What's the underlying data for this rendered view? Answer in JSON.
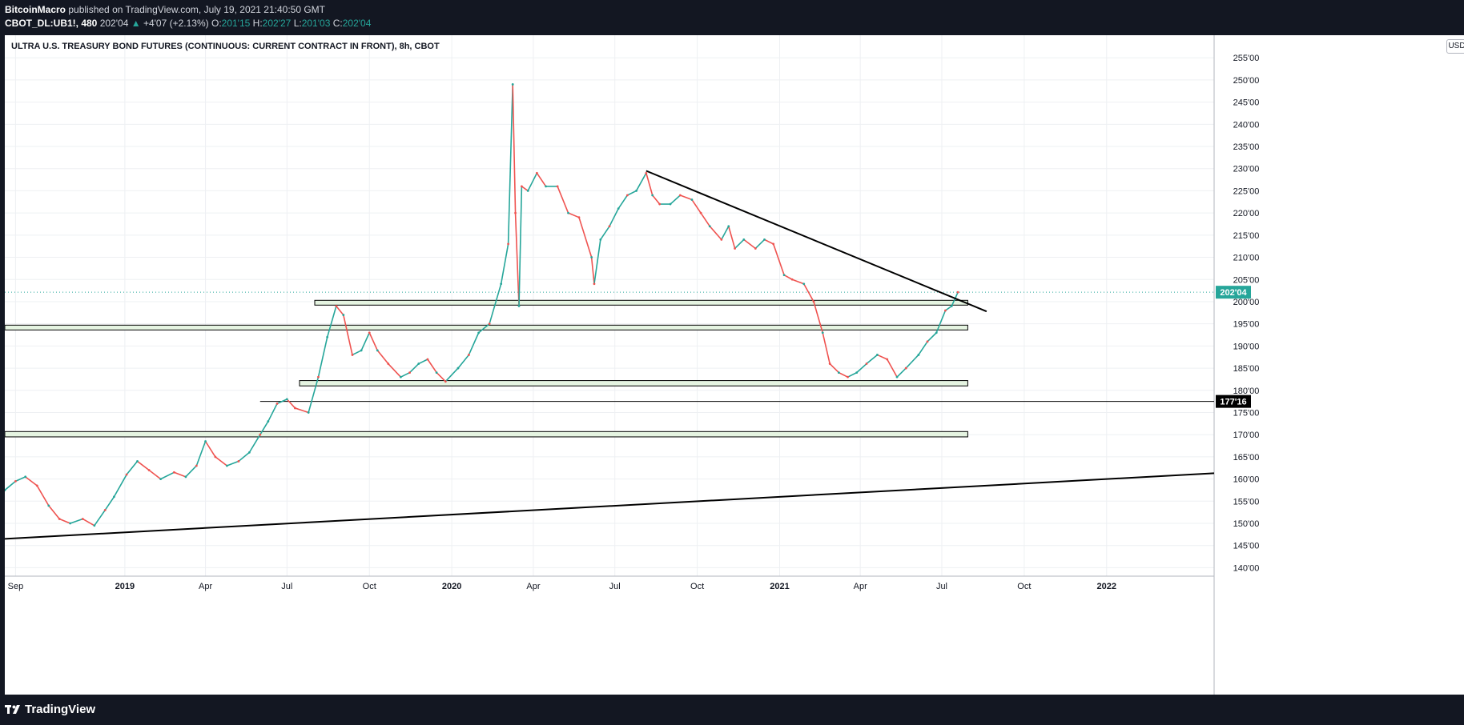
{
  "header": {
    "author": "BitcoinMacro",
    "published_text": "published on TradingView.com, July 19, 2021 21:40:50 GMT",
    "symbol": "CBOT_DL:UB1!, 480",
    "last": "202'04",
    "change_arrow": "▲",
    "change": "+4'07 (+2.13%)",
    "open_label": "O:",
    "open": "201'15",
    "high_label": "H:",
    "high": "202'27",
    "low_label": "L:",
    "low": "201'03",
    "close_label": "C:",
    "close": "202'04"
  },
  "footer": {
    "logo_text": "TradingView"
  },
  "chart_data": {
    "type": "line",
    "title": "ULTRA U.S. TREASURY BOND FUTURES (CONTINUOUS: CURRENT CONTRACT IN FRONT), 8h, CBOT",
    "currency": "USD",
    "x_range": [
      "2018-08-20",
      "2022-05-01"
    ],
    "ylim": [
      138,
      260
    ],
    "y_ticks": [
      "140'00",
      "145'00",
      "150'00",
      "155'00",
      "160'00",
      "165'00",
      "170'00",
      "175'00",
      "180'00",
      "185'00",
      "190'00",
      "195'00",
      "200'00",
      "205'00",
      "210'00",
      "215'00",
      "220'00",
      "225'00",
      "230'00",
      "235'00",
      "240'00",
      "245'00",
      "250'00",
      "255'00"
    ],
    "y_tick_values": [
      140,
      145,
      150,
      155,
      160,
      165,
      170,
      175,
      180,
      185,
      190,
      195,
      200,
      205,
      210,
      215,
      220,
      225,
      230,
      235,
      240,
      245,
      250,
      255
    ],
    "x_ticks": [
      {
        "label": "Sep",
        "date": "2018-09-01",
        "bold": false
      },
      {
        "label": "2019",
        "date": "2019-01-01",
        "bold": true
      },
      {
        "label": "Apr",
        "date": "2019-04-01",
        "bold": false
      },
      {
        "label": "Jul",
        "date": "2019-07-01",
        "bold": false
      },
      {
        "label": "Oct",
        "date": "2019-10-01",
        "bold": false
      },
      {
        "label": "2020",
        "date": "2020-01-01",
        "bold": true
      },
      {
        "label": "Apr",
        "date": "2020-04-01",
        "bold": false
      },
      {
        "label": "Jul",
        "date": "2020-07-01",
        "bold": false
      },
      {
        "label": "Oct",
        "date": "2020-10-01",
        "bold": false
      },
      {
        "label": "2021",
        "date": "2021-01-01",
        "bold": true
      },
      {
        "label": "Apr",
        "date": "2021-04-01",
        "bold": false
      },
      {
        "label": "Jul",
        "date": "2021-07-01",
        "bold": false
      },
      {
        "label": "Oct",
        "date": "2021-10-01",
        "bold": false
      },
      {
        "label": "2022",
        "date": "2022-01-01",
        "bold": true
      }
    ],
    "series": [
      {
        "color": "#26a69a",
        "down_color": "#ef5350",
        "points": [
          [
            "2018-08-20",
            157.5
          ],
          [
            "2018-09-01",
            159.5
          ],
          [
            "2018-09-12",
            160.5
          ],
          [
            "2018-09-25",
            158.5
          ],
          [
            "2018-10-08",
            154
          ],
          [
            "2018-10-20",
            151
          ],
          [
            "2018-11-01",
            150
          ],
          [
            "2018-11-15",
            151
          ],
          [
            "2018-11-28",
            149.5
          ],
          [
            "2018-12-10",
            153
          ],
          [
            "2018-12-20",
            156
          ],
          [
            "2019-01-03",
            161
          ],
          [
            "2019-01-15",
            164
          ],
          [
            "2019-01-28",
            162
          ],
          [
            "2019-02-10",
            160
          ],
          [
            "2019-02-25",
            161.5
          ],
          [
            "2019-03-10",
            160.5
          ],
          [
            "2019-03-22",
            163
          ],
          [
            "2019-04-01",
            168.5
          ],
          [
            "2019-04-12",
            165
          ],
          [
            "2019-04-25",
            163
          ],
          [
            "2019-05-08",
            164
          ],
          [
            "2019-05-20",
            166
          ],
          [
            "2019-06-01",
            170
          ],
          [
            "2019-06-10",
            173
          ],
          [
            "2019-06-20",
            177
          ],
          [
            "2019-07-01",
            178
          ],
          [
            "2019-07-10",
            176
          ],
          [
            "2019-07-25",
            175
          ],
          [
            "2019-08-05",
            183
          ],
          [
            "2019-08-15",
            192
          ],
          [
            "2019-08-25",
            199
          ],
          [
            "2019-09-02",
            197
          ],
          [
            "2019-09-12",
            188
          ],
          [
            "2019-09-22",
            189
          ],
          [
            "2019-10-01",
            193
          ],
          [
            "2019-10-10",
            189
          ],
          [
            "2019-10-22",
            186
          ],
          [
            "2019-11-05",
            183
          ],
          [
            "2019-11-15",
            184
          ],
          [
            "2019-11-25",
            186
          ],
          [
            "2019-12-05",
            187
          ],
          [
            "2019-12-15",
            184
          ],
          [
            "2019-12-25",
            182
          ],
          [
            "2020-01-08",
            185
          ],
          [
            "2020-01-20",
            188
          ],
          [
            "2020-01-31",
            193
          ],
          [
            "2020-02-12",
            195
          ],
          [
            "2020-02-25",
            204
          ],
          [
            "2020-03-04",
            213
          ],
          [
            "2020-03-09",
            249
          ],
          [
            "2020-03-12",
            220
          ],
          [
            "2020-03-16",
            199
          ],
          [
            "2020-03-19",
            226
          ],
          [
            "2020-03-26",
            225
          ],
          [
            "2020-04-05",
            229
          ],
          [
            "2020-04-15",
            226
          ],
          [
            "2020-04-28",
            226
          ],
          [
            "2020-05-10",
            220
          ],
          [
            "2020-05-22",
            219
          ],
          [
            "2020-06-05",
            210
          ],
          [
            "2020-06-08",
            204
          ],
          [
            "2020-06-15",
            214
          ],
          [
            "2020-06-25",
            217
          ],
          [
            "2020-07-05",
            221
          ],
          [
            "2020-07-15",
            224
          ],
          [
            "2020-07-25",
            225
          ],
          [
            "2020-08-05",
            229
          ],
          [
            "2020-08-12",
            224
          ],
          [
            "2020-08-20",
            222
          ],
          [
            "2020-09-01",
            222
          ],
          [
            "2020-09-12",
            224
          ],
          [
            "2020-09-25",
            223
          ],
          [
            "2020-10-05",
            220
          ],
          [
            "2020-10-15",
            217
          ],
          [
            "2020-10-28",
            214
          ],
          [
            "2020-11-05",
            217
          ],
          [
            "2020-11-12",
            212
          ],
          [
            "2020-11-22",
            214
          ],
          [
            "2020-12-05",
            212
          ],
          [
            "2020-12-15",
            214
          ],
          [
            "2020-12-25",
            213
          ],
          [
            "2021-01-06",
            206
          ],
          [
            "2021-01-15",
            205
          ],
          [
            "2021-01-28",
            204
          ],
          [
            "2021-02-08",
            200
          ],
          [
            "2021-02-18",
            193
          ],
          [
            "2021-02-26",
            186
          ],
          [
            "2021-03-08",
            184
          ],
          [
            "2021-03-18",
            183
          ],
          [
            "2021-03-28",
            184
          ],
          [
            "2021-04-08",
            186
          ],
          [
            "2021-04-20",
            188
          ],
          [
            "2021-05-01",
            187
          ],
          [
            "2021-05-12",
            183
          ],
          [
            "2021-05-22",
            185
          ],
          [
            "2021-06-05",
            188
          ],
          [
            "2021-06-15",
            191
          ],
          [
            "2021-06-25",
            193
          ],
          [
            "2021-07-05",
            198
          ],
          [
            "2021-07-12",
            199
          ],
          [
            "2021-07-19",
            202.13
          ]
        ]
      }
    ],
    "trend_lines": [
      {
        "from": [
          "2018-08-20",
          146.5
        ],
        "to": [
          "2022-05-01",
          161.3
        ]
      },
      {
        "from": [
          "2020-08-05",
          229.5
        ],
        "to": [
          "2021-08-20",
          197.8
        ]
      }
    ],
    "zones": [
      {
        "x_from": "2019-08-01",
        "x_to": "2021-07-30",
        "y_low": 199.5,
        "y_high": 200.3
      },
      {
        "x_from": "2018-08-20",
        "x_to": "2021-07-30",
        "y_low": 193.7,
        "y_high": 194.7
      },
      {
        "x_from": "2019-07-15",
        "x_to": "2021-07-30",
        "y_low": 181,
        "y_high": 182.2
      },
      {
        "x_from": "2018-08-20",
        "x_to": "2021-07-30",
        "y_low": 169.5,
        "y_high": 170.7
      }
    ],
    "horizontal_line": {
      "x_from": "2019-06-01",
      "value": 177.5,
      "label": "177'16"
    },
    "last_price": {
      "value": 202.13,
      "label": "202'04"
    }
  }
}
